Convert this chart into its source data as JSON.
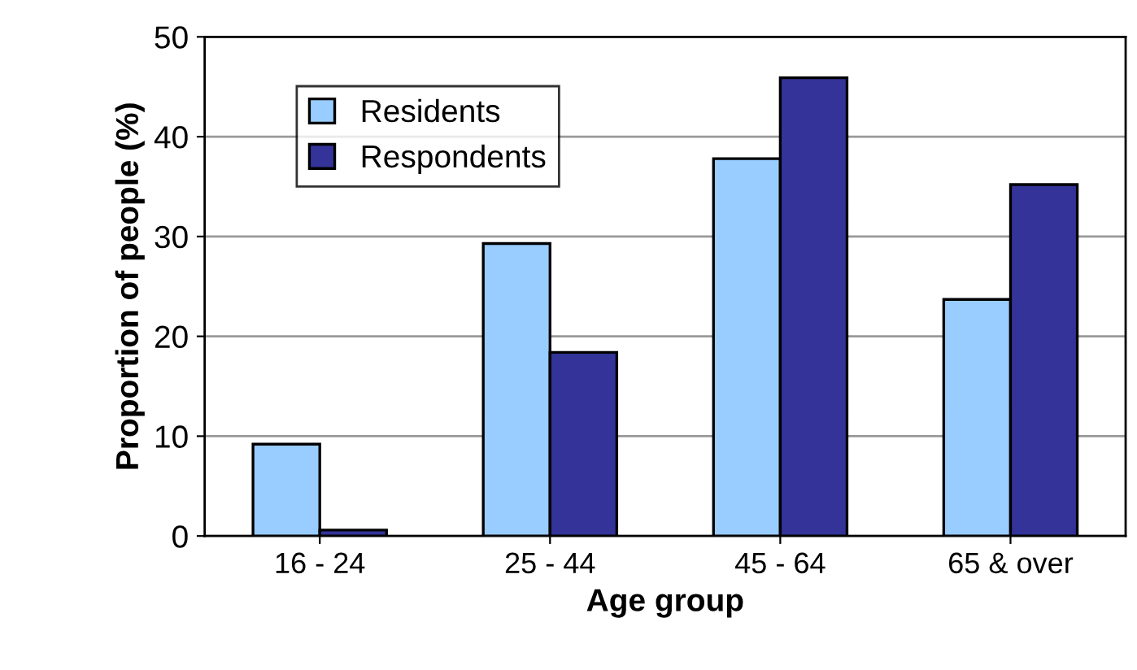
{
  "chart_data": {
    "type": "bar",
    "xlabel": "Age group",
    "ylabel": "Proportion of people (%)",
    "categories": [
      "16 - 24",
      "25 - 44",
      "45 - 64",
      "65 & over"
    ],
    "series": [
      {
        "name": "Residents",
        "color": "#99ccff",
        "values": [
          9.2,
          29.3,
          37.8,
          23.7
        ]
      },
      {
        "name": "Respondents",
        "color": "#333399",
        "values": [
          0.6,
          18.4,
          45.9,
          35.2
        ]
      }
    ],
    "ylim": [
      0,
      50
    ],
    "yticks": [
      0,
      10,
      20,
      30,
      40,
      50
    ],
    "grid": "y",
    "legend": "top left"
  }
}
